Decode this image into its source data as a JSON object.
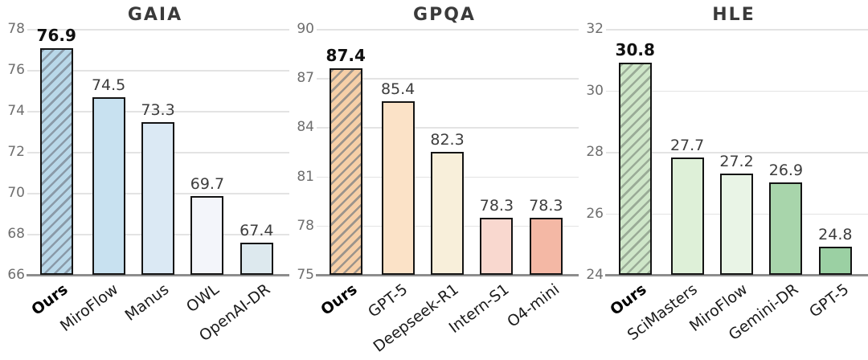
{
  "figure_label": "benchmark-comparison-bar-charts",
  "chart_data": [
    {
      "type": "bar",
      "title": "GAIA",
      "categories": [
        "Ours",
        "MiroFlow",
        "Manus",
        "OWL",
        "OpenAI-DR"
      ],
      "values": [
        76.9,
        74.5,
        73.3,
        69.7,
        67.4
      ],
      "value_labels": [
        "76.9",
        "74.5",
        "73.3",
        "69.7",
        "67.4"
      ],
      "ylim": [
        66,
        78
      ],
      "yticks": [
        66,
        68,
        70,
        72,
        74,
        76,
        78
      ],
      "grid": "horizontal",
      "legend": "none",
      "emphasis_index": 0,
      "bar_styles": [
        {
          "fill": "#b9d8e9",
          "hatch": true,
          "hatch_color": "#8a9aa8"
        },
        {
          "fill": "#c8e1f0",
          "hatch": false
        },
        {
          "fill": "#dbe9f4",
          "hatch": false
        },
        {
          "fill": "#f3f5fa",
          "hatch": false
        },
        {
          "fill": "#dde9ee",
          "hatch": false
        }
      ]
    },
    {
      "type": "bar",
      "title": "GPQA",
      "categories": [
        "Ours",
        "GPT-5",
        "Deepseek-R1",
        "Intern-S1",
        "O4-mini"
      ],
      "values": [
        87.4,
        85.4,
        82.3,
        78.3,
        78.3
      ],
      "value_labels": [
        "87.4",
        "85.4",
        "82.3",
        "78.3",
        "78.3"
      ],
      "ylim": [
        75,
        90
      ],
      "yticks": [
        75,
        78,
        81,
        84,
        87,
        90
      ],
      "grid": "horizontal",
      "legend": "none",
      "emphasis_index": 0,
      "bar_styles": [
        {
          "fill": "#f6cfa7",
          "hatch": true,
          "hatch_color": "#9c948b"
        },
        {
          "fill": "#fbe2c7",
          "hatch": false
        },
        {
          "fill": "#f8efda",
          "hatch": false
        },
        {
          "fill": "#f9d8cf",
          "hatch": false
        },
        {
          "fill": "#f4b8a5",
          "hatch": false
        }
      ]
    },
    {
      "type": "bar",
      "title": "HLE",
      "categories": [
        "Ours",
        "SciMasters",
        "MiroFlow",
        "Gemini-DR",
        "GPT-5"
      ],
      "values": [
        30.8,
        27.7,
        27.2,
        26.9,
        24.8
      ],
      "value_labels": [
        "30.8",
        "27.7",
        "27.2",
        "26.9",
        "24.8"
      ],
      "ylim": [
        24,
        32
      ],
      "yticks": [
        24,
        26,
        28,
        30,
        32
      ],
      "grid": "horizontal",
      "legend": "none",
      "emphasis_index": 0,
      "bar_styles": [
        {
          "fill": "#cee6c8",
          "hatch": true,
          "hatch_color": "#9aab97"
        },
        {
          "fill": "#def0d8",
          "hatch": false
        },
        {
          "fill": "#e9f4e6",
          "hatch": false
        },
        {
          "fill": "#a8d5ab",
          "hatch": false
        },
        {
          "fill": "#9bd0a3",
          "hatch": false
        }
      ]
    }
  ]
}
